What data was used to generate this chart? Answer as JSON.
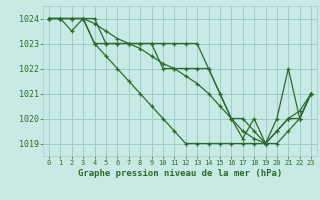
{
  "title": "Graphe pression niveau de la mer (hPa)",
  "background_color": "#c8eae4",
  "grid_color": "#a0cccc",
  "line_color": "#2d6a2d",
  "marker_color": "#2d6a2d",
  "xlim": [
    -0.5,
    23.5
  ],
  "ylim": [
    1018.5,
    1024.5
  ],
  "yticks": [
    1019,
    1020,
    1021,
    1022,
    1023,
    1024
  ],
  "xticks": [
    0,
    1,
    2,
    3,
    4,
    5,
    6,
    7,
    8,
    9,
    10,
    11,
    12,
    13,
    14,
    15,
    16,
    17,
    18,
    19,
    20,
    21,
    22,
    23
  ],
  "lines": [
    [
      1024.0,
      1024.0,
      1024.0,
      1024.0,
      1023.0,
      1023.0,
      1023.0,
      1023.0,
      1023.0,
      1023.0,
      1023.0,
      1023.0,
      1023.0,
      1023.0,
      1022.0,
      1021.0,
      1020.0,
      1019.2,
      1020.0,
      1019.0,
      1020.0,
      1022.0,
      1020.0,
      1021.0
    ],
    [
      1024.0,
      1024.0,
      1023.5,
      1024.0,
      1024.0,
      1023.0,
      1023.0,
      1023.0,
      1023.0,
      1023.0,
      1022.0,
      1022.0,
      1022.0,
      1022.0,
      1022.0,
      1021.0,
      1020.0,
      1020.0,
      1019.5,
      1019.0,
      1019.0,
      1019.5,
      1020.0,
      1021.0
    ],
    [
      1024.0,
      1024.0,
      1024.0,
      1024.0,
      1023.0,
      1022.5,
      1022.0,
      1021.5,
      1021.0,
      1020.5,
      1020.0,
      1019.5,
      1019.0,
      1019.0,
      1019.0,
      1019.0,
      1019.0,
      1019.0,
      1019.0,
      1019.0,
      1019.5,
      1020.0,
      1020.0,
      1021.0
    ],
    [
      1024.0,
      1024.0,
      1024.0,
      1024.0,
      1023.8,
      1023.5,
      1023.2,
      1023.0,
      1022.8,
      1022.5,
      1022.2,
      1022.0,
      1021.7,
      1021.4,
      1021.0,
      1020.5,
      1020.0,
      1019.5,
      1019.2,
      1019.0,
      1019.5,
      1020.0,
      1020.3,
      1021.0
    ]
  ]
}
